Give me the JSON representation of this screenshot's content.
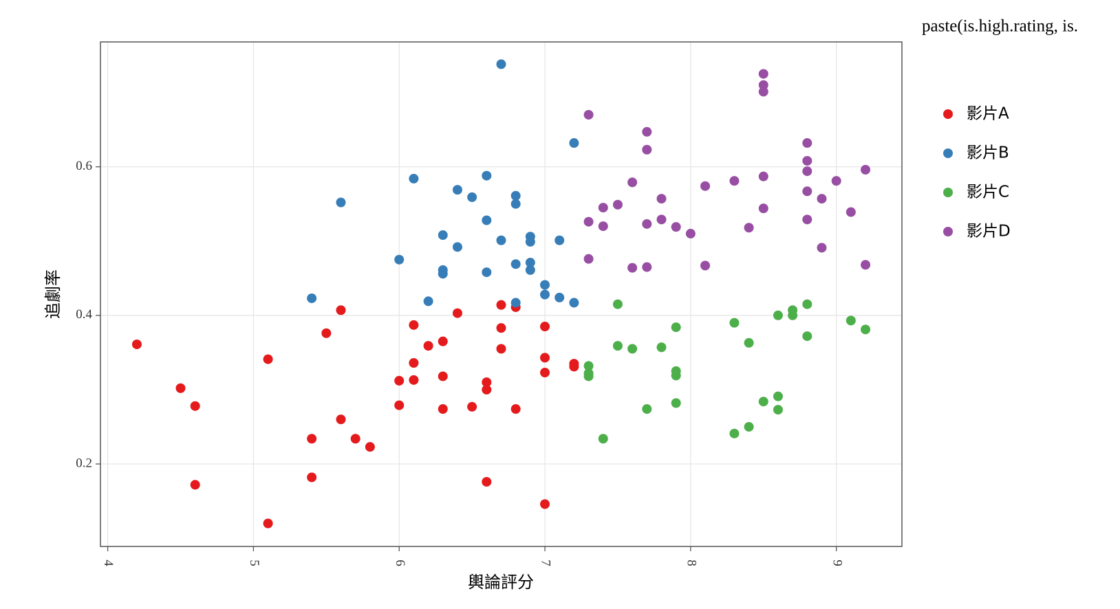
{
  "chart_data": {
    "type": "scatter",
    "x_label": "輿論評分",
    "y_label": "追劇率",
    "legend_title": "paste(is.high.rating, is.",
    "xlim": [
      3.95,
      9.45
    ],
    "ylim": [
      0.089,
      0.768
    ],
    "xticks": [
      4,
      5,
      6,
      7,
      8,
      9
    ],
    "yticks": [
      0.2,
      0.4,
      0.6
    ],
    "grid": true,
    "legend_position": "right",
    "series": [
      {
        "name": "影片A",
        "color": "#e41a1c",
        "x": [
          4.2,
          4.5,
          4.6,
          4.6,
          5.1,
          5.1,
          5.4,
          5.4,
          5.5,
          5.6,
          5.6,
          5.7,
          5.8,
          6.0,
          6.0,
          6.1,
          6.1,
          6.1,
          6.2,
          6.3,
          6.3,
          6.3,
          6.4,
          6.5,
          6.6,
          6.6,
          6.6,
          6.7,
          6.7,
          6.7,
          6.8,
          6.8,
          7.0,
          7.0,
          7.0,
          7.0,
          7.2,
          7.2
        ],
        "values": [
          0.361,
          0.302,
          0.278,
          0.172,
          0.341,
          0.12,
          0.234,
          0.182,
          0.376,
          0.407,
          0.26,
          0.234,
          0.223,
          0.312,
          0.279,
          0.387,
          0.336,
          0.313,
          0.359,
          0.365,
          0.318,
          0.274,
          0.403,
          0.277,
          0.31,
          0.3,
          0.176,
          0.414,
          0.383,
          0.355,
          0.411,
          0.274,
          0.385,
          0.343,
          0.323,
          0.146,
          0.335,
          0.331
        ]
      },
      {
        "name": "影片B",
        "color": "#377eb8",
        "x": [
          6.7,
          7.2,
          5.6,
          6.1,
          6.6,
          6.4,
          6.5,
          6.8,
          6.8,
          6.6,
          6.3,
          6.7,
          6.9,
          6.9,
          7.1,
          6.4,
          6.0,
          6.3,
          6.3,
          6.6,
          6.8,
          6.9,
          6.9,
          7.0,
          7.0,
          7.1,
          7.2,
          6.8,
          5.4,
          6.2
        ],
        "values": [
          0.738,
          0.632,
          0.552,
          0.584,
          0.588,
          0.569,
          0.559,
          0.561,
          0.55,
          0.528,
          0.508,
          0.501,
          0.506,
          0.499,
          0.501,
          0.492,
          0.475,
          0.461,
          0.456,
          0.458,
          0.469,
          0.471,
          0.461,
          0.441,
          0.428,
          0.424,
          0.417,
          0.417,
          0.423,
          0.419
        ]
      },
      {
        "name": "影片C",
        "color": "#4daf4a",
        "x": [
          7.5,
          7.9,
          8.3,
          8.6,
          8.7,
          8.7,
          8.8,
          8.8,
          9.1,
          9.2,
          8.4,
          7.5,
          7.6,
          7.8,
          7.3,
          7.3,
          7.3,
          7.9,
          7.9,
          7.9,
          7.7,
          8.5,
          8.6,
          8.6,
          8.3,
          8.4,
          7.4
        ],
        "values": [
          0.415,
          0.384,
          0.39,
          0.4,
          0.407,
          0.4,
          0.415,
          0.372,
          0.393,
          0.381,
          0.363,
          0.359,
          0.355,
          0.357,
          0.332,
          0.322,
          0.318,
          0.325,
          0.319,
          0.282,
          0.274,
          0.284,
          0.291,
          0.273,
          0.241,
          0.25,
          0.234
        ]
      },
      {
        "name": "影片D",
        "color": "#984ea3",
        "x": [
          8.5,
          8.5,
          8.5,
          7.3,
          7.7,
          7.7,
          8.8,
          8.8,
          8.8,
          9.2,
          8.5,
          8.3,
          9.0,
          7.6,
          8.1,
          8.8,
          7.8,
          8.9,
          7.5,
          7.4,
          8.5,
          9.1,
          7.3,
          7.8,
          8.8,
          7.4,
          7.7,
          7.9,
          8.4,
          8.0,
          8.9,
          7.3,
          7.6,
          7.7,
          8.1,
          9.2
        ],
        "values": [
          0.725,
          0.71,
          0.701,
          0.67,
          0.647,
          0.623,
          0.632,
          0.608,
          0.594,
          0.596,
          0.587,
          0.581,
          0.581,
          0.579,
          0.574,
          0.567,
          0.557,
          0.557,
          0.549,
          0.545,
          0.544,
          0.539,
          0.526,
          0.529,
          0.529,
          0.52,
          0.523,
          0.519,
          0.518,
          0.51,
          0.491,
          0.476,
          0.464,
          0.465,
          0.467,
          0.468
        ]
      }
    ]
  }
}
